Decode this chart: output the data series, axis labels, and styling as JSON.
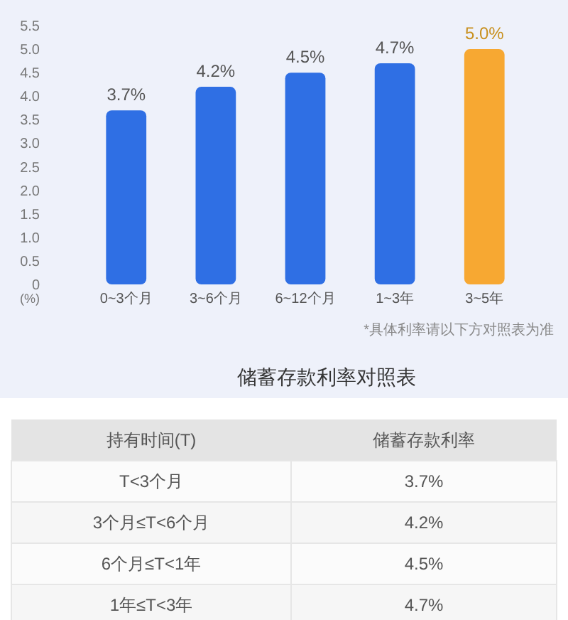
{
  "chart_data": {
    "type": "bar",
    "ylabel": "(%)",
    "categories": [
      "0~3个月",
      "3~6个月",
      "6~12个月",
      "1~3年",
      "3~5年"
    ],
    "values": [
      3.7,
      4.2,
      4.5,
      4.7,
      5.0
    ],
    "colors": [
      "#2f6fe4",
      "#2f6fe4",
      "#2f6fe4",
      "#2f6fe4",
      "#f7a832"
    ],
    "value_labels": [
      "3.7%",
      "4.2%",
      "4.5%",
      "4.7%",
      "5.0%"
    ],
    "ylim": [
      0,
      5.5
    ],
    "yticks": [
      0,
      {
        "value": 0.5,
        "label": "0.5"
      },
      {
        "value": 1,
        "label": "1.0"
      },
      {
        "value": 1.5,
        "label": "1.5"
      },
      {
        "value": 2,
        "label": "2.0"
      },
      {
        "value": 2.5,
        "label": "2.5"
      },
      {
        "value": 3,
        "label": "3.0"
      },
      {
        "value": 3.5,
        "label": "3.5"
      },
      {
        "value": 4,
        "label": "4.0"
      },
      {
        "value": 4.5,
        "label": "4.5"
      },
      {
        "value": 5,
        "label": "5.0"
      },
      {
        "value": 5.5,
        "label": "5.5"
      }
    ],
    "annotations": [
      "*具体利率请以下方对照表为准",
      "储蓄存款利率对照表",
      "持有时间(T)",
      "储蓄存款利率",
      "T<3个月",
      "3个月≤T<6个月",
      "6个月≤T<1年",
      "1年≤T<3年"
    ]
  }
}
